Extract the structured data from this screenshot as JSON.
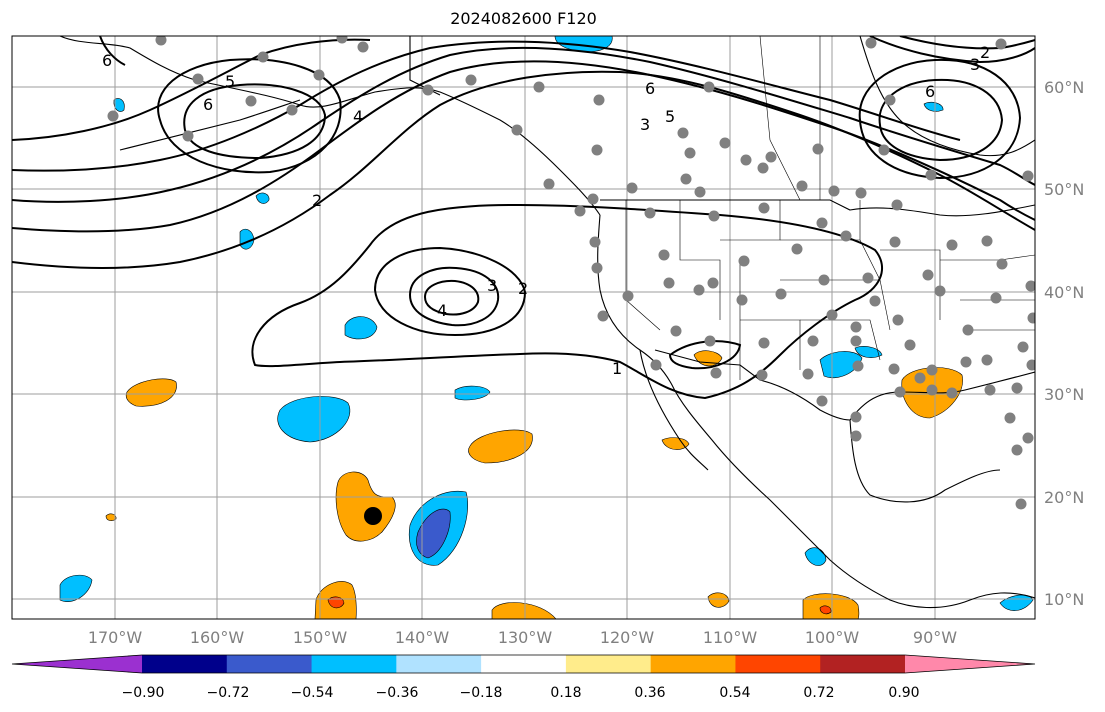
{
  "title": "2024082600 F120",
  "map": {
    "lon_ticks": [
      "170°W",
      "160°W",
      "150°W",
      "140°W",
      "130°W",
      "120°W",
      "110°W",
      "100°W",
      "90°W"
    ],
    "lat_ticks": [
      "60°N",
      "50°N",
      "40°N",
      "30°N",
      "20°N",
      "10°N"
    ],
    "contour_labels": [
      "1",
      "2",
      "2",
      "3",
      "3",
      "4",
      "4",
      "5",
      "5",
      "6",
      "6",
      "6",
      "2",
      "3",
      "6"
    ],
    "grid": true,
    "station_marker_color": "#808080",
    "highlight_marker_color": "#000000",
    "contour_color": "#000000"
  },
  "colorbar": {
    "colors": [
      "#9b30d0",
      "#00008b",
      "#3a5acc",
      "#00bfff",
      "#b0e2ff",
      "#ffffff",
      "#ffec8b",
      "#ffa500",
      "#ff4500",
      "#b22222",
      "#ff88aa"
    ],
    "ticks": [
      "−0.90",
      "−0.72",
      "−0.54",
      "−0.36",
      "−0.18",
      "0.18",
      "0.36",
      "0.54",
      "0.72",
      "0.90"
    ],
    "extend": "both"
  }
}
